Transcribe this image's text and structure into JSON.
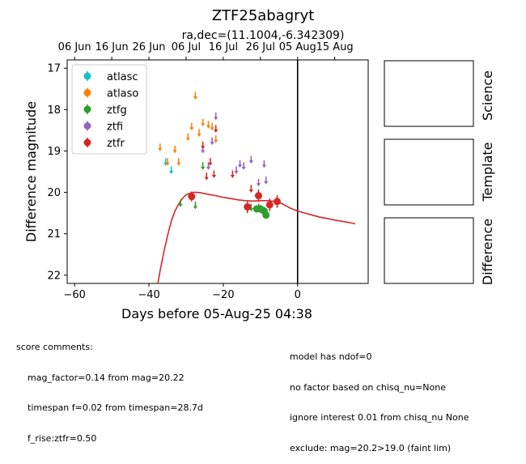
{
  "title": "ZTF25abagryt",
  "subtitle": "ra,dec=(11.1004,-6.342309)",
  "panels": {
    "science": "Science",
    "template": "Template",
    "difference": "Difference"
  },
  "score_comments": {
    "header": "score comments:",
    "lines": [
      "mag_factor=0.14 from mag=20.22",
      "timespan f=0.02 from timespan=28.7d",
      "f_rise:ztfr=0.50"
    ]
  },
  "model_comments": [
    "model has ndof=0",
    "no factor based on chisq_nu=None",
    "ignore interest 0.01 from chisq_nu None",
    "exclude: mag=20.2>19.0 (faint lim)"
  ],
  "chart_data": {
    "type": "scatter",
    "xlabel": "Days before 05-Aug-25 04:38",
    "ylabel": "Difference magnitude",
    "xlim": [
      -62,
      19
    ],
    "ylim": [
      22.2,
      16.8
    ],
    "y_inverted": true,
    "xticks": [
      -60,
      -40,
      -20,
      0
    ],
    "yticks": [
      17,
      18,
      19,
      20,
      21,
      22
    ],
    "top_axis_ticks": [
      {
        "x": -60,
        "label": "06 Jun"
      },
      {
        "x": -50,
        "label": "16 Jun"
      },
      {
        "x": -40,
        "label": "26 Jun"
      },
      {
        "x": -30,
        "label": "06 Jul"
      },
      {
        "x": -20,
        "label": "16 Jul"
      },
      {
        "x": -10,
        "label": "26 Jul"
      },
      {
        "x": 0,
        "label": "05 Aug"
      },
      {
        "x": 10,
        "label": "15 Aug"
      }
    ],
    "reference_line_x": 0,
    "legend_position": "upper-left",
    "series": [
      {
        "name": "atlasc",
        "color": "#17becf",
        "detections": [],
        "upper_limits": [
          [
            -35.5,
            19.25
          ],
          [
            -34.0,
            19.45
          ]
        ]
      },
      {
        "name": "atlaso",
        "color": "#ff7f0e",
        "detections": [],
        "upper_limits": [
          [
            -37.0,
            18.9
          ],
          [
            -35.0,
            19.25
          ],
          [
            -33.0,
            18.95
          ],
          [
            -32.0,
            19.25
          ],
          [
            -29.5,
            18.65
          ],
          [
            -28.5,
            18.4
          ],
          [
            -27.5,
            17.65
          ],
          [
            -26.5,
            18.55
          ],
          [
            -25.5,
            18.3
          ],
          [
            -24.0,
            18.35
          ],
          [
            -23.0,
            18.4
          ],
          [
            -22.0,
            18.7
          ]
        ]
      },
      {
        "name": "ztfg",
        "color": "#2ca02c",
        "detections": [
          [
            -11.0,
            20.4,
            0.08
          ],
          [
            -10.0,
            20.4,
            0.1
          ],
          [
            -9.0,
            20.45,
            0.1
          ],
          [
            -8.5,
            20.55,
            0.08
          ]
        ],
        "upper_limits": [
          [
            -31.5,
            20.25
          ],
          [
            -27.5,
            20.3
          ],
          [
            -25.5,
            19.35
          ],
          [
            -12.5,
            20.35
          ],
          [
            -10.5,
            20.35
          ]
        ]
      },
      {
        "name": "ztfi",
        "color": "#9467bd",
        "detections": [],
        "upper_limits": [
          [
            -25.5,
            18.95
          ],
          [
            -24.0,
            19.35
          ],
          [
            -23.0,
            18.75
          ],
          [
            -22.0,
            18.15
          ],
          [
            -16.5,
            19.45
          ],
          [
            -15.5,
            19.3
          ],
          [
            -14.5,
            19.35
          ],
          [
            -12.5,
            19.2
          ],
          [
            -10.5,
            19.75
          ],
          [
            -9.0,
            19.3
          ],
          [
            -8.5,
            19.7
          ]
        ]
      },
      {
        "name": "ztfr",
        "color": "#d62728",
        "detections": [
          [
            -28.5,
            20.1,
            0.12
          ],
          [
            -13.5,
            20.35,
            0.15
          ],
          [
            -10.5,
            20.08,
            0.15
          ],
          [
            -7.5,
            20.3,
            0.15
          ],
          [
            -5.5,
            20.22,
            0.15
          ]
        ],
        "upper_limits": [
          [
            -25.5,
            18.85
          ],
          [
            -24.5,
            19.6
          ],
          [
            -23.5,
            19.25
          ],
          [
            -22.5,
            19.55
          ],
          [
            -22.0,
            18.45
          ],
          [
            -17.5,
            19.55
          ],
          [
            -12.5,
            19.9
          ]
        ]
      }
    ],
    "model_curve": {
      "color": "#d62728",
      "points": [
        [
          -38.0,
          22.4
        ],
        [
          -37.0,
          21.9
        ],
        [
          -36.0,
          21.45
        ],
        [
          -35.0,
          21.05
        ],
        [
          -34.0,
          20.7
        ],
        [
          -33.0,
          20.45
        ],
        [
          -32.0,
          20.28
        ],
        [
          -31.0,
          20.15
        ],
        [
          -30.0,
          20.06
        ],
        [
          -29.0,
          20.02
        ],
        [
          -28.0,
          20.0
        ],
        [
          -27.0,
          20.0
        ],
        [
          -26.0,
          20.01
        ],
        [
          -25.0,
          20.03
        ],
        [
          -24.0,
          20.05
        ],
        [
          -22.0,
          20.08
        ],
        [
          -20.0,
          20.12
        ],
        [
          -18.0,
          20.15
        ],
        [
          -16.0,
          20.18
        ],
        [
          -14.0,
          20.2
        ],
        [
          -12.0,
          20.21
        ],
        [
          -10.0,
          20.2
        ],
        [
          -8.0,
          20.2
        ],
        [
          -6.0,
          20.22
        ],
        [
          -4.0,
          20.28
        ],
        [
          -2.0,
          20.38
        ],
        [
          0.0,
          20.45
        ],
        [
          2.0,
          20.5
        ],
        [
          4.0,
          20.55
        ],
        [
          6.0,
          20.6
        ],
        [
          8.0,
          20.63
        ],
        [
          10.0,
          20.67
        ],
        [
          12.0,
          20.7
        ],
        [
          14.0,
          20.73
        ],
        [
          15.5,
          20.76
        ]
      ]
    }
  }
}
